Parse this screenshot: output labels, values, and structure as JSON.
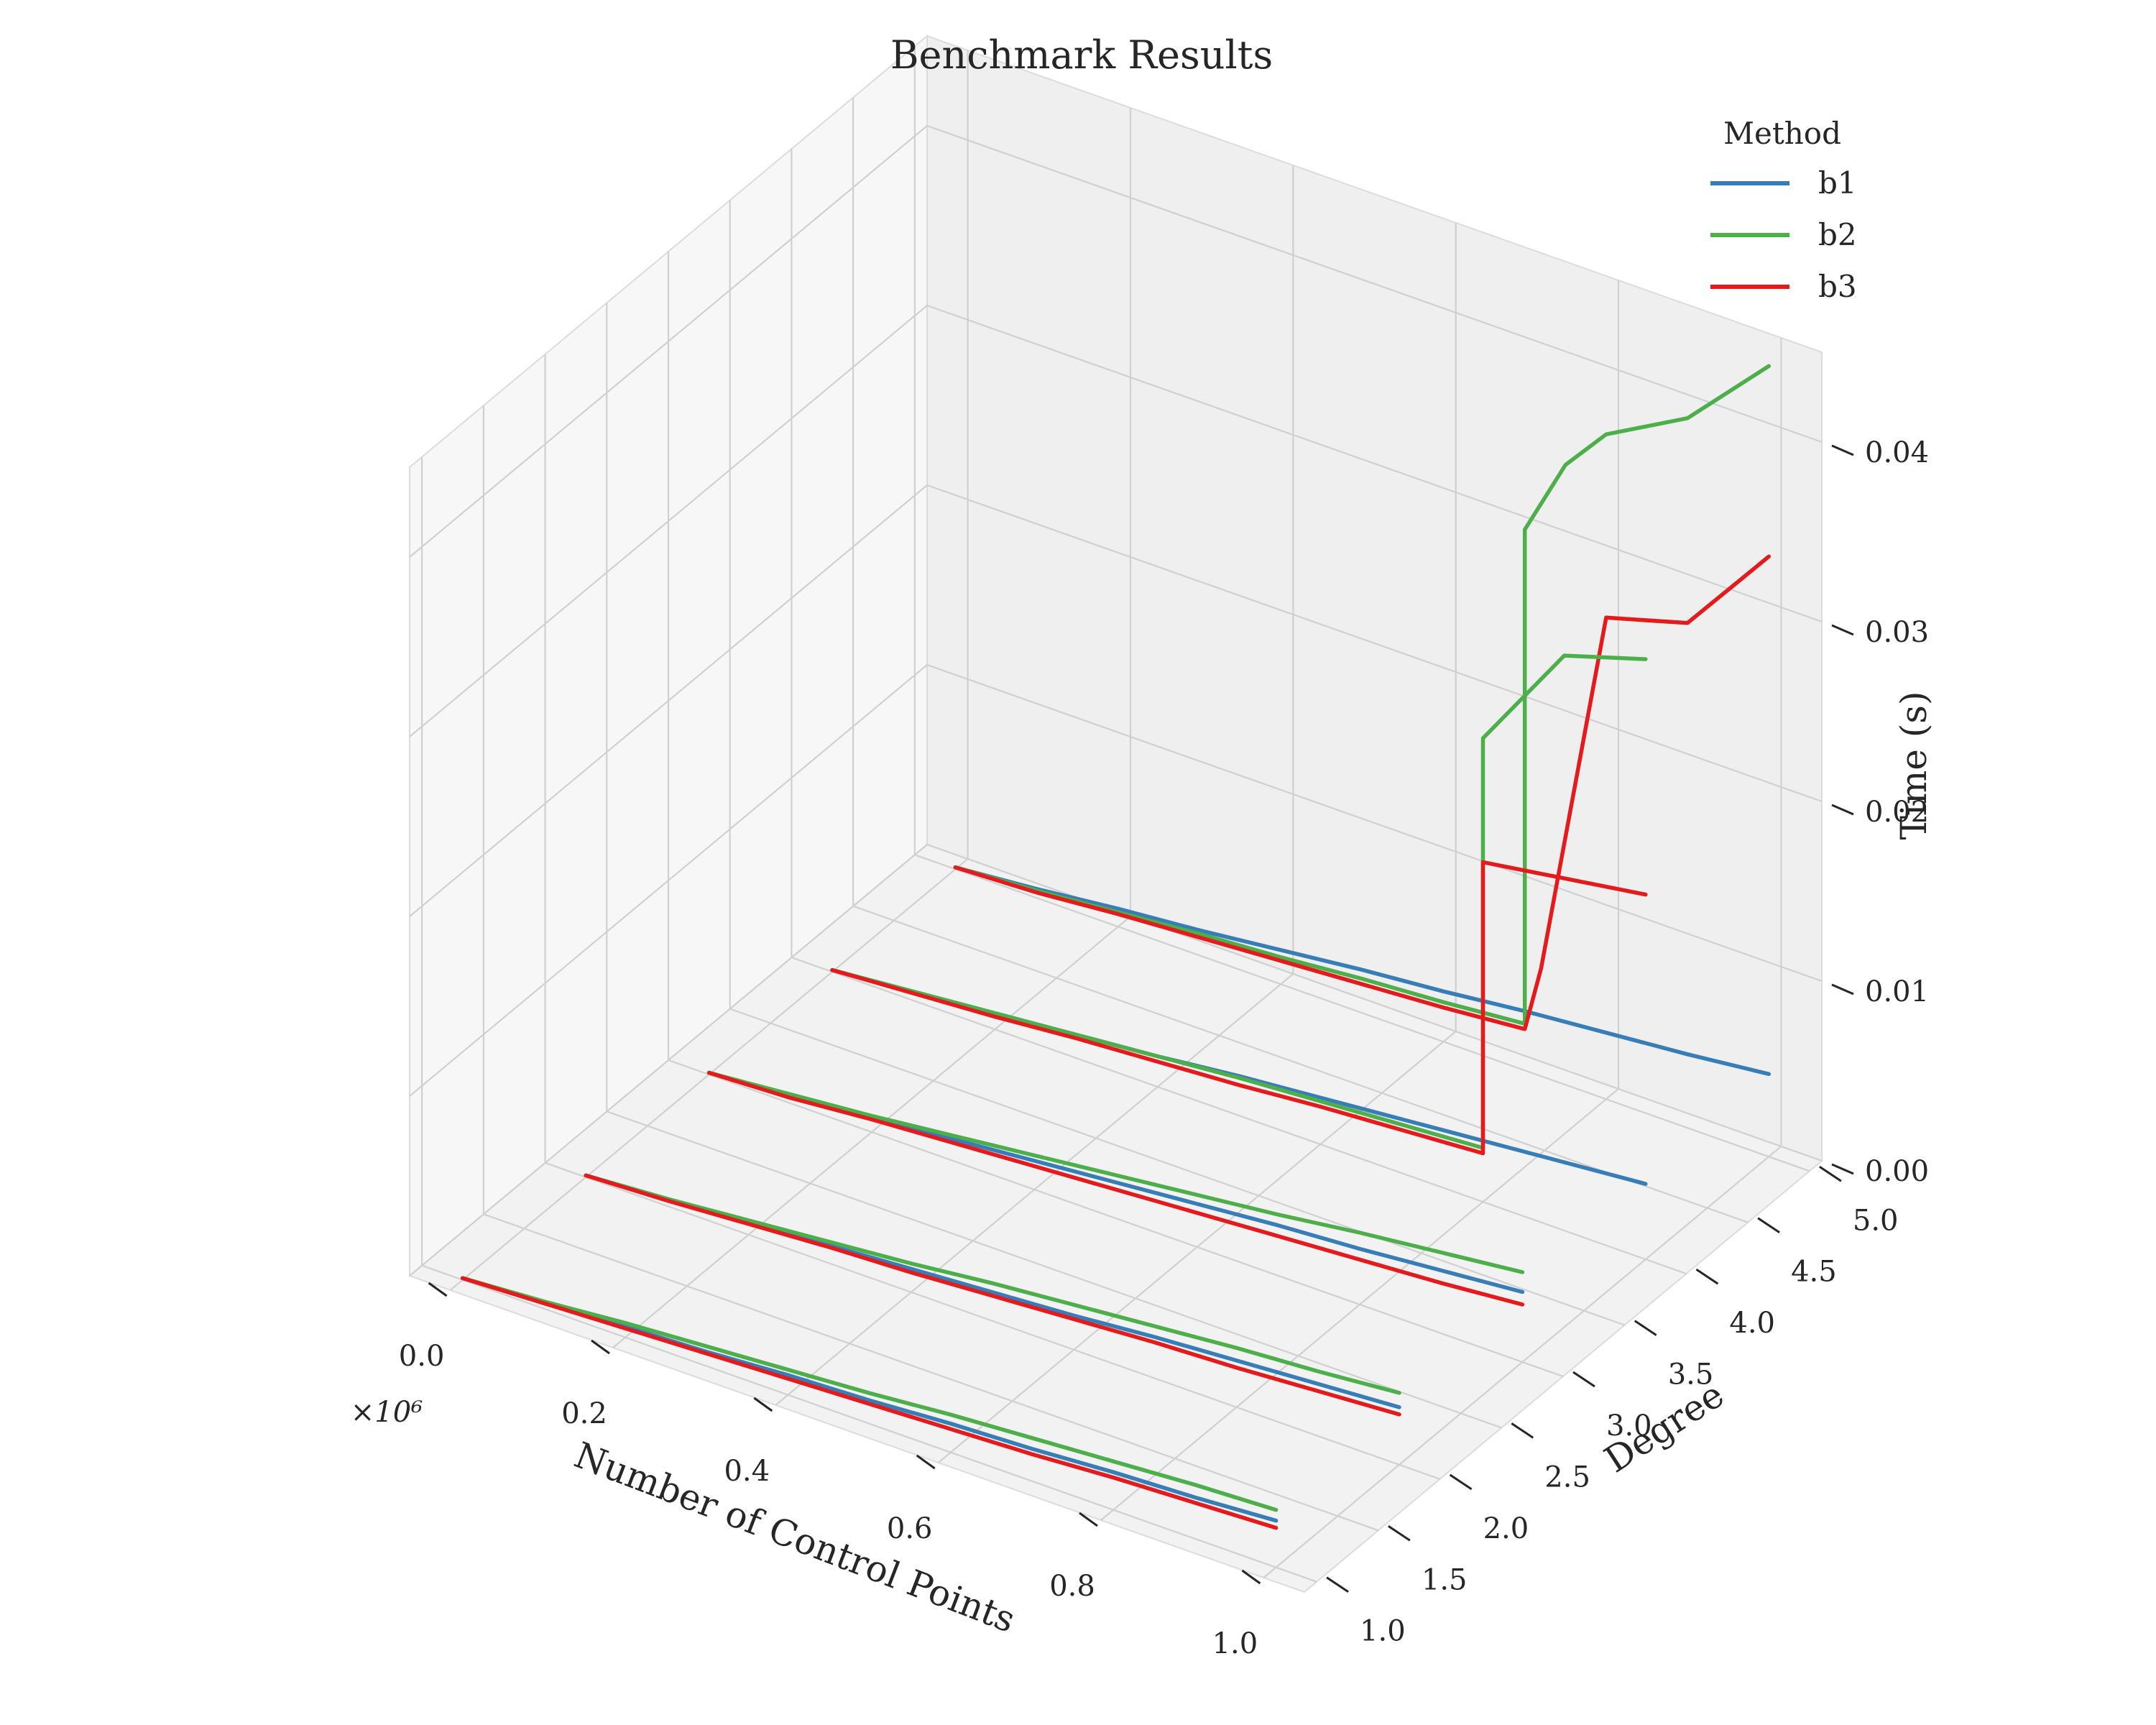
{
  "chart_data": {
    "type": "line",
    "projection": "3d",
    "title": "Benchmark Results",
    "xlabel": "Number of Control Points",
    "ylabel": "Degree",
    "zlabel": "Time (s)",
    "x_offset_text": "×10⁶",
    "xlim": [
      -0.05,
      1.05
    ],
    "ylim": [
      0.9,
      5.1
    ],
    "zlim": [
      0.0,
      0.045
    ],
    "xticks": [
      0.0,
      0.2,
      0.4,
      0.6,
      0.8,
      1.0
    ],
    "xtick_labels": [
      "0.0",
      "0.2",
      "0.4",
      "0.6",
      "0.8",
      "1.0"
    ],
    "yticks": [
      1.0,
      1.5,
      2.0,
      2.5,
      3.0,
      3.5,
      4.0,
      4.5,
      5.0
    ],
    "ytick_labels": [
      "1.0",
      "1.5",
      "2.0",
      "2.5",
      "3.0",
      "3.5",
      "4.0",
      "4.5",
      "5.0"
    ],
    "zticks": [
      0.0,
      0.01,
      0.02,
      0.03,
      0.04
    ],
    "ztick_labels": [
      "0.00",
      "0.01",
      "0.02",
      "0.03",
      "0.04"
    ],
    "grid": true,
    "legend": {
      "title": "Method",
      "position": "top-right",
      "entries": [
        {
          "label": "b1",
          "color": "#377eb8"
        },
        {
          "label": "b2",
          "color": "#4daf4a"
        },
        {
          "label": "b3",
          "color": "#e41a1c"
        }
      ]
    },
    "series": [
      {
        "name": "b1",
        "degree": 1,
        "color": "#377eb8",
        "x": [
          0.0,
          0.1,
          0.2,
          0.3,
          0.4,
          0.5,
          0.6,
          0.7,
          0.8,
          0.9,
          1.0
        ],
        "y": [
          0.0001,
          0.0003,
          0.0006,
          0.0008,
          0.0011,
          0.0013,
          0.0016,
          0.0018,
          0.0021,
          0.0023,
          0.0026
        ]
      },
      {
        "name": "b2",
        "degree": 1,
        "color": "#4daf4a",
        "x": [
          0.0,
          0.1,
          0.2,
          0.3,
          0.4,
          0.5,
          0.6,
          0.7,
          0.8,
          0.9,
          1.0
        ],
        "y": [
          0.0001,
          0.0004,
          0.0008,
          0.0011,
          0.0014,
          0.0017,
          0.0021,
          0.0024,
          0.0027,
          0.003,
          0.0032
        ]
      },
      {
        "name": "b3",
        "degree": 1,
        "color": "#e41a1c",
        "x": [
          0.0,
          0.1,
          0.2,
          0.3,
          0.4,
          0.5,
          0.6,
          0.7,
          0.8,
          0.9,
          1.0
        ],
        "y": [
          0.0001,
          0.0003,
          0.0005,
          0.0007,
          0.0009,
          0.0011,
          0.0013,
          0.0015,
          0.0018,
          0.002,
          0.0022
        ]
      },
      {
        "name": "b1",
        "degree": 2,
        "color": "#377eb8",
        "x": [
          0.0,
          0.1,
          0.2,
          0.3,
          0.4,
          0.5,
          0.6,
          0.7,
          0.8,
          0.9,
          1.0
        ],
        "y": [
          0.0001,
          0.0004,
          0.0007,
          0.001,
          0.0013,
          0.0016,
          0.0019,
          0.0023,
          0.0026,
          0.0029,
          0.0032
        ]
      },
      {
        "name": "b2",
        "degree": 2,
        "color": "#4daf4a",
        "x": [
          0.0,
          0.1,
          0.2,
          0.3,
          0.4,
          0.5,
          0.6,
          0.7,
          0.8,
          0.9,
          1.0
        ],
        "y": [
          0.0001,
          0.0004,
          0.0008,
          0.0012,
          0.0016,
          0.0021,
          0.0025,
          0.0029,
          0.0033,
          0.0036,
          0.004
        ]
      },
      {
        "name": "b3",
        "degree": 2,
        "color": "#e41a1c",
        "x": [
          0.0,
          0.1,
          0.2,
          0.3,
          0.4,
          0.5,
          0.6,
          0.7,
          0.8,
          0.9,
          1.0
        ],
        "y": [
          0.0001,
          0.0003,
          0.0006,
          0.0009,
          0.0011,
          0.0014,
          0.0017,
          0.002,
          0.0022,
          0.0025,
          0.0028
        ]
      },
      {
        "name": "b1",
        "degree": 3,
        "color": "#377eb8",
        "x": [
          0.0,
          0.1,
          0.2,
          0.3,
          0.4,
          0.5,
          0.6,
          0.7,
          0.8,
          0.9,
          1.0
        ],
        "y": [
          0.0001,
          0.0004,
          0.0008,
          0.0012,
          0.0016,
          0.002,
          0.0024,
          0.0028,
          0.0031,
          0.0035,
          0.0039
        ]
      },
      {
        "name": "b2",
        "degree": 3,
        "color": "#4daf4a",
        "x": [
          0.0,
          0.1,
          0.2,
          0.3,
          0.4,
          0.5,
          0.6,
          0.7,
          0.8,
          0.9,
          1.0
        ],
        "y": [
          0.0001,
          0.0005,
          0.0009,
          0.0014,
          0.0019,
          0.0024,
          0.0029,
          0.0034,
          0.004,
          0.0045,
          0.005
        ]
      },
      {
        "name": "b3",
        "degree": 3,
        "color": "#e41a1c",
        "x": [
          0.0,
          0.1,
          0.2,
          0.3,
          0.4,
          0.5,
          0.6,
          0.7,
          0.8,
          0.9,
          1.0
        ],
        "y": [
          0.0001,
          0.0003,
          0.0007,
          0.001,
          0.0013,
          0.0016,
          0.0019,
          0.0022,
          0.0025,
          0.0028,
          0.0032
        ]
      },
      {
        "name": "b1",
        "degree": 4,
        "color": "#377eb8",
        "x": [
          0.0,
          0.1,
          0.2,
          0.3,
          0.4,
          0.5,
          0.6,
          0.7,
          0.8,
          0.9,
          1.0
        ],
        "y": [
          0.0001,
          0.0005,
          0.0009,
          0.0013,
          0.0017,
          0.0022,
          0.0026,
          0.003,
          0.0034,
          0.0038,
          0.0042
        ]
      },
      {
        "name": "b2",
        "degree": 4,
        "color": "#4daf4a",
        "x": [
          0.0,
          0.1,
          0.2,
          0.3,
          0.4,
          0.5,
          0.6,
          0.7,
          0.8,
          0.8,
          0.9,
          1.0
        ],
        "y": [
          0.0001,
          0.0005,
          0.0009,
          0.0013,
          0.0017,
          0.0021,
          0.0024,
          0.0027,
          0.003,
          0.0258,
          0.032,
          0.0334
        ]
      },
      {
        "name": "b3",
        "degree": 4,
        "color": "#e41a1c",
        "x": [
          0.0,
          0.1,
          0.2,
          0.3,
          0.4,
          0.5,
          0.6,
          0.7,
          0.8,
          0.8,
          0.9,
          1.0
        ],
        "y": [
          0.0001,
          0.0004,
          0.0007,
          0.0011,
          0.0014,
          0.0017,
          0.0021,
          0.0024,
          0.0027,
          0.0189,
          0.0196,
          0.0203
        ]
      },
      {
        "name": "b1",
        "degree": 5,
        "color": "#377eb8",
        "x": [
          0.0,
          0.1,
          0.2,
          0.3,
          0.4,
          0.5,
          0.6,
          0.7,
          0.8,
          0.9,
          1.0
        ],
        "y": [
          0.0001,
          0.0005,
          0.001,
          0.0014,
          0.0019,
          0.0024,
          0.0028,
          0.0033,
          0.0037,
          0.0041,
          0.0046
        ]
      },
      {
        "name": "b2",
        "degree": 5,
        "color": "#4daf4a",
        "x": [
          0.0,
          0.1,
          0.2,
          0.3,
          0.4,
          0.5,
          0.6,
          0.7,
          0.7,
          0.75,
          0.8,
          0.9,
          1.0
        ],
        "y": [
          0.0001,
          0.0004,
          0.0008,
          0.0012,
          0.0015,
          0.0019,
          0.0022,
          0.0026,
          0.0301,
          0.0345,
          0.037,
          0.0395,
          0.044
        ]
      },
      {
        "name": "b3",
        "degree": 5,
        "color": "#e41a1c",
        "x": [
          0.0,
          0.1,
          0.2,
          0.3,
          0.4,
          0.5,
          0.6,
          0.7,
          0.72,
          0.8,
          0.9,
          1.0
        ],
        "y": [
          0.0001,
          0.0003,
          0.0007,
          0.001,
          0.0013,
          0.0016,
          0.0019,
          0.0023,
          0.006,
          0.0268,
          0.0281,
          0.0334
        ]
      }
    ]
  }
}
